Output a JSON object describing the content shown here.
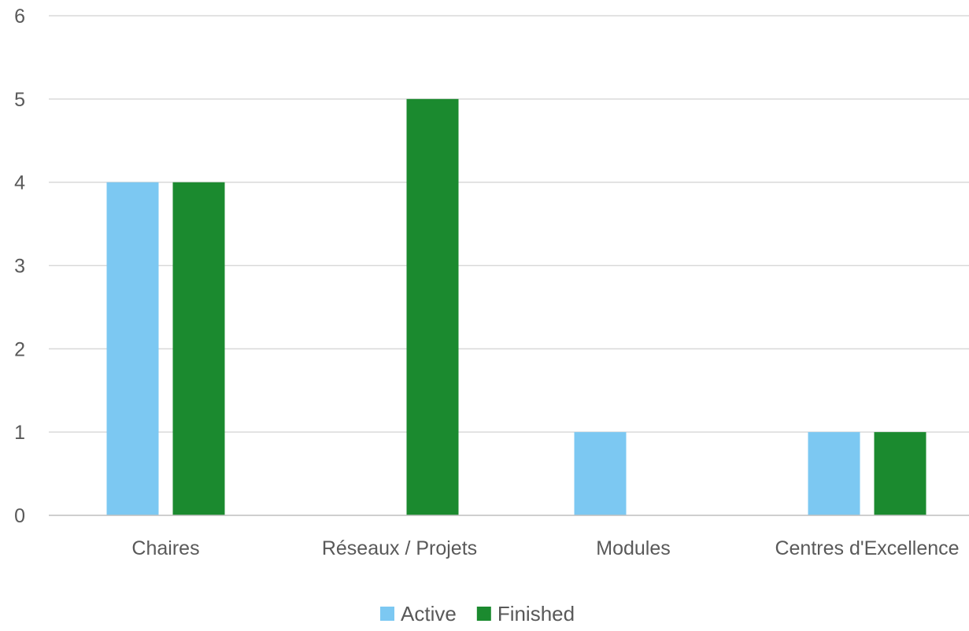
{
  "chart_data": {
    "type": "bar",
    "categories": [
      "Chaires",
      "Réseaux / Projets",
      "Modules",
      "Centres d'Excellence"
    ],
    "series": [
      {
        "name": "Active",
        "values": [
          4,
          0,
          1,
          1
        ],
        "color": "#7CC8F2"
      },
      {
        "name": "Finished",
        "values": [
          4,
          5,
          0,
          1
        ],
        "color": "#1B8A2F"
      }
    ],
    "ylim": [
      0,
      6
    ],
    "yticks": [
      0,
      1,
      2,
      3,
      4,
      5,
      6
    ],
    "grid": true,
    "legend_position": "bottom",
    "gridline_color": "#D9D9D9",
    "axis_color": "#BFBFBF"
  }
}
